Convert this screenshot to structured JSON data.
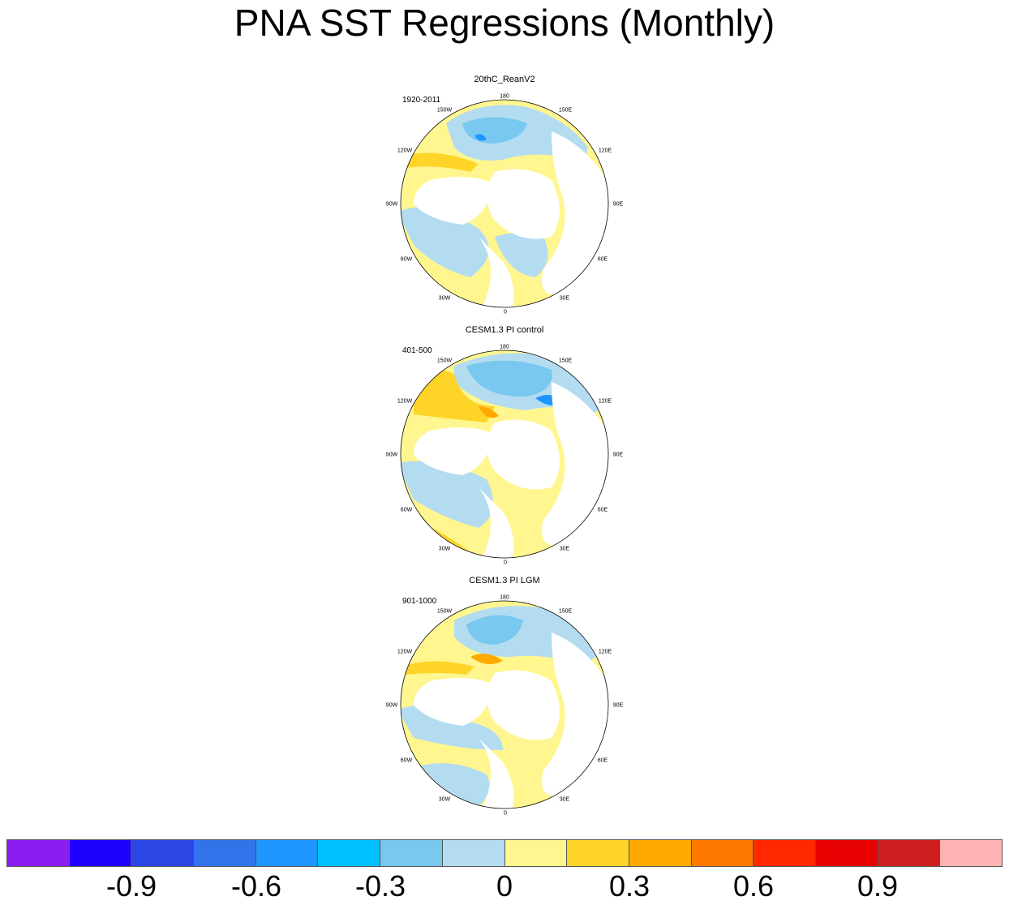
{
  "title": "PNA SST Regressions (Monthly)",
  "panels": [
    {
      "title": "20thC_ReanV2",
      "period": "1920-2011"
    },
    {
      "title": "CESM1.3 PI control",
      "period": "401-500"
    },
    {
      "title": "CESM1.3 PI LGM",
      "period": "901-1000"
    }
  ],
  "longitude_labels": [
    "180",
    "150E",
    "120E",
    "90E",
    "60E",
    "30E",
    "0",
    "30W",
    "60W",
    "90W",
    "120W",
    "150W"
  ],
  "colorbar": {
    "colors": [
      "#8a1ef0",
      "#1e00ff",
      "#2c46e6",
      "#3173e8",
      "#1e96ff",
      "#00c0ff",
      "#78c8f0",
      "#b4dcf0",
      "#fff68f",
      "#ffd428",
      "#ffaa00",
      "#ff7800",
      "#ff2800",
      "#e60000",
      "#cc1e1e",
      "#ffb4b4"
    ],
    "tick_labels": [
      "-0.9",
      "-0.6",
      "-0.3",
      "0",
      "0.3",
      "0.6",
      "0.9"
    ]
  },
  "colors": {
    "land": "#ffffff",
    "coast": "#777777",
    "ocean_pos": "#fff68f",
    "ocean_neg": "#b4dcf0",
    "strong_pos": "#ffd428",
    "strong_neg": "#78c8f0",
    "very_pos": "#ffaa00",
    "very_neg": "#1e96ff"
  }
}
